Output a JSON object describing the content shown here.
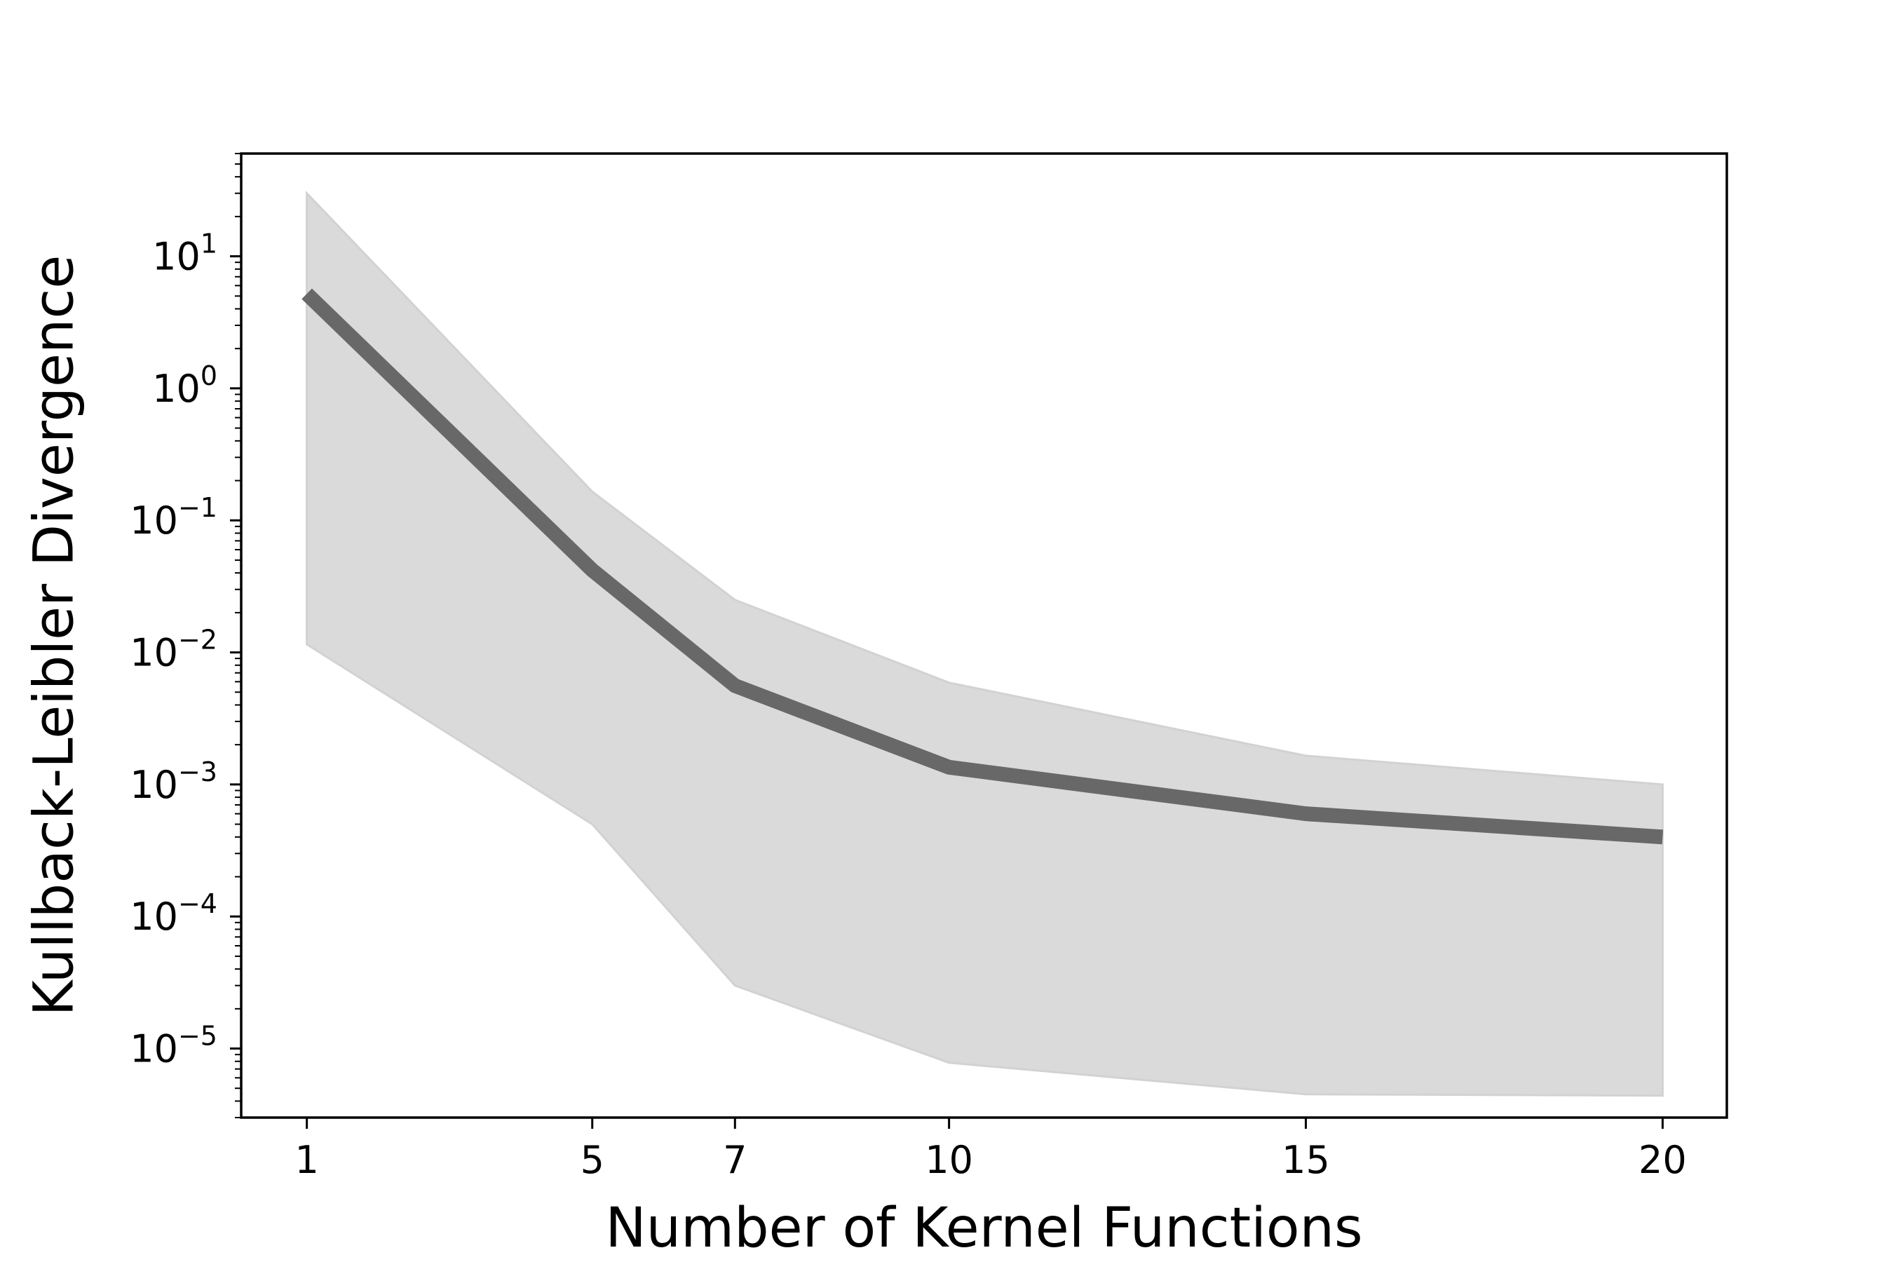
{
  "chart_data": {
    "type": "line",
    "title": "",
    "xlabel": "Number of Kernel Functions",
    "ylabel": "Kullback-Leibler Divergence",
    "x": [
      1,
      5,
      7,
      10,
      15,
      20
    ],
    "xticks": [
      1,
      5,
      7,
      10,
      15,
      20
    ],
    "xtick_labels": [
      "1",
      "5",
      "7",
      "10",
      "15",
      "20"
    ],
    "xlim": [
      0.08,
      20.9
    ],
    "yscale": "log",
    "ylim": [
      3e-06,
      60
    ],
    "yticks": [
      1e-05,
      0.0001,
      0.001,
      0.01,
      0.1,
      1,
      10
    ],
    "ytick_exponents": [
      "−5",
      "−4",
      "−3",
      "−2",
      "−1",
      "0",
      "1"
    ],
    "ytick_base": "10",
    "grid": false,
    "series": [
      {
        "values": [
          5.2,
          0.042,
          0.0056,
          0.00135,
          0.0006,
          0.0004
        ],
        "lower": [
          0.0115,
          0.0005,
          3e-05,
          7.8e-06,
          4.5e-06,
          4.4e-06
        ],
        "upper": [
          30,
          0.165,
          0.025,
          0.0059,
          0.00165,
          0.001
        ],
        "color": "#686868",
        "band_color": "#dadada"
      }
    ]
  }
}
